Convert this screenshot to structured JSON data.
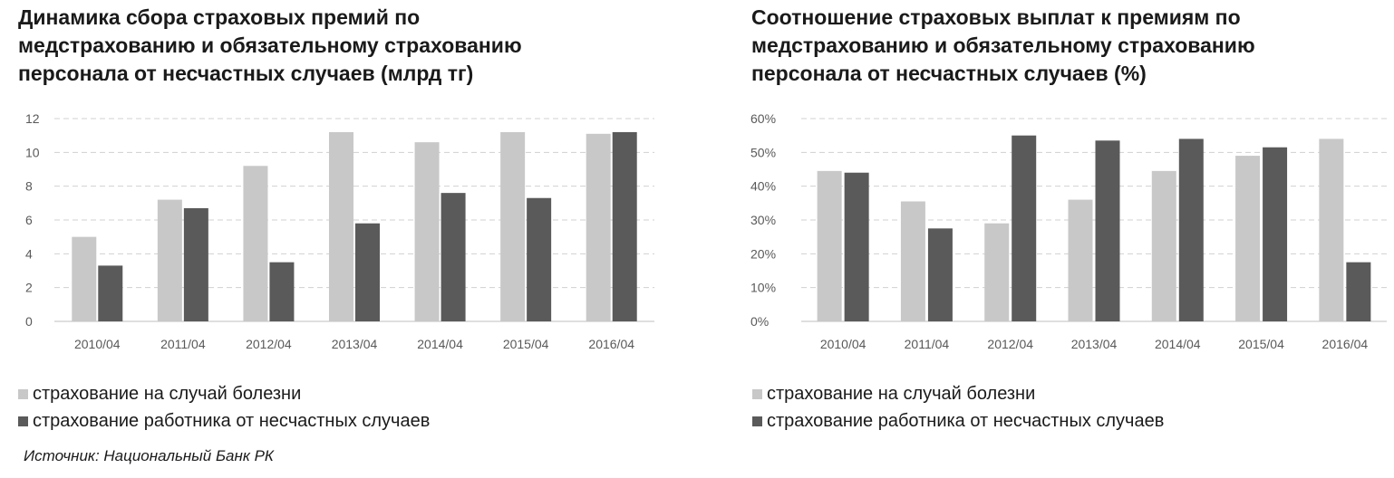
{
  "colors": {
    "series1": "#c8c8c8",
    "series2": "#5a5a5a",
    "grid": "#d0d0d0",
    "tick": "#595959"
  },
  "source": "Источник: Национальный Банк РК",
  "chart_data": [
    {
      "type": "bar",
      "title_lines": [
        "Динамика сбора страховых премий по",
        "медстрахованию и обязательному страхованию",
        "персонала от несчастных случаев (млрд тг)"
      ],
      "categories": [
        "2010/04",
        "2011/04",
        "2012/04",
        "2013/04",
        "2014/04",
        "2015/04",
        "2016/04"
      ],
      "yticks": [
        "0",
        "2",
        "4",
        "6",
        "8",
        "10",
        "12"
      ],
      "ylim": [
        0,
        12
      ],
      "grid": true,
      "legend_position": "bottom",
      "series": [
        {
          "name": "страхование на случай болезни",
          "values": [
            5.0,
            7.2,
            9.2,
            11.2,
            10.6,
            11.2,
            11.1
          ]
        },
        {
          "name": "страхование работника от несчастных случаев",
          "values": [
            3.3,
            6.7,
            3.5,
            5.8,
            7.6,
            7.3,
            11.2
          ]
        }
      ]
    },
    {
      "type": "bar",
      "title_lines": [
        "Соотношение страховых выплат к премиям по",
        "медстрахованию и обязательному страхованию",
        "персонала от несчастных случаев (%)"
      ],
      "categories": [
        "2010/04",
        "2011/04",
        "2012/04",
        "2013/04",
        "2014/04",
        "2015/04",
        "2016/04"
      ],
      "yticks": [
        "0%",
        "10%",
        "20%",
        "30%",
        "40%",
        "50%",
        "60%"
      ],
      "ylim": [
        0,
        60
      ],
      "grid": true,
      "legend_position": "bottom",
      "series": [
        {
          "name": "страхование на случай болезни",
          "values": [
            44.5,
            35.5,
            29,
            36,
            44.5,
            49,
            54
          ]
        },
        {
          "name": "страхование работника от несчастных случаев",
          "values": [
            44,
            27.5,
            55,
            53.5,
            54,
            51.5,
            17.5
          ]
        }
      ]
    }
  ]
}
